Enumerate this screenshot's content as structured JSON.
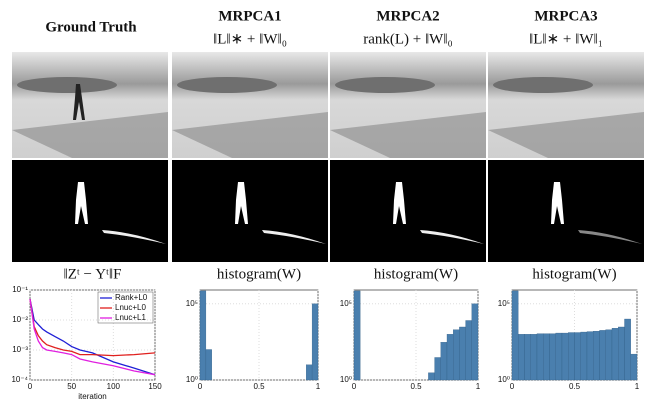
{
  "headers": [
    {
      "title": "Ground Truth"
    },
    {
      "title": "MRPCA1",
      "formula": "‖L‖∗ + ‖W‖₀"
    },
    {
      "title": "MRPCA2",
      "formula": "rank(L) + ‖W‖₀"
    },
    {
      "title": "MRPCA3",
      "formula": "‖L‖∗ + ‖W‖₁"
    }
  ],
  "chart_data": [
    {
      "type": "line",
      "title": "‖Zᵗ − Yᵗ‖F",
      "x_label": "iteration",
      "x": [
        0,
        5,
        10,
        15,
        20,
        30,
        40,
        50,
        60,
        75,
        100,
        125,
        150
      ],
      "series": [
        {
          "name": "Rank+L0",
          "color": "#1f1fd6",
          "values": [
            0.05,
            0.01,
            0.007,
            0.005,
            0.004,
            0.0028,
            0.002,
            0.0013,
            0.001,
            0.0008,
            0.0004,
            0.00025,
            0.00015
          ]
        },
        {
          "name": "Lnuc+L0",
          "color": "#e0201e",
          "values": [
            0.05,
            0.006,
            0.003,
            0.002,
            0.0015,
            0.0012,
            0.001,
            0.0009,
            0.0007,
            0.0007,
            0.00065,
            0.0007,
            0.0008
          ]
        },
        {
          "name": "Lnuc+L1",
          "color": "#e020e0",
          "values": [
            0.05,
            0.005,
            0.002,
            0.0012,
            0.001,
            0.0009,
            0.0008,
            0.0007,
            0.0005,
            0.0004,
            0.0003,
            0.0002,
            0.00015
          ]
        }
      ],
      "xlim": [
        0,
        150
      ],
      "xticks": [
        0,
        50,
        100,
        150
      ],
      "ylim": [
        0.0001,
        0.1
      ],
      "log_y": true,
      "yticks": [
        {
          "value": 0.0001,
          "label": "10⁻⁴"
        },
        {
          "value": 0.001,
          "label": "10⁻³"
        },
        {
          "value": 0.01,
          "label": "10⁻²"
        },
        {
          "value": 0.1,
          "label": "10⁻¹"
        }
      ],
      "grid": true,
      "legend": "top-right"
    },
    {
      "type": "histogram",
      "title": "histogram(W)",
      "color": "#4a7fae",
      "bins": [
        0,
        0.05,
        0.1,
        0.15,
        0.2,
        0.25,
        0.3,
        0.35,
        0.4,
        0.45,
        0.5,
        0.55,
        0.6,
        0.65,
        0.7,
        0.75,
        0.8,
        0.85,
        0.9,
        0.95,
        1
      ],
      "values": [
        700000,
        100,
        1,
        1,
        1,
        1,
        1,
        1,
        1,
        1,
        1,
        1,
        1,
        1,
        1,
        1,
        1,
        1,
        10,
        100000
      ],
      "xlim": [
        0,
        1
      ],
      "xticks": [
        0,
        0.5,
        1
      ],
      "ylim": [
        1,
        800000
      ],
      "log_y": true,
      "yticks": [
        {
          "value": 1,
          "label": "10⁰"
        },
        {
          "value": 100000,
          "label": "10⁵"
        }
      ],
      "grid": true
    },
    {
      "type": "histogram",
      "title": "histogram(W)",
      "color": "#4a7fae",
      "bins": [
        0,
        0.05,
        0.1,
        0.15,
        0.2,
        0.25,
        0.3,
        0.35,
        0.4,
        0.45,
        0.5,
        0.55,
        0.6,
        0.65,
        0.7,
        0.75,
        0.8,
        0.85,
        0.9,
        0.95,
        1
      ],
      "values": [
        700000,
        1,
        1,
        1,
        1,
        1,
        1,
        1,
        1,
        1,
        1,
        1,
        3,
        30,
        300,
        1000,
        2000,
        3000,
        8000,
        100000
      ],
      "xlim": [
        0,
        1
      ],
      "xticks": [
        0,
        0.5,
        1
      ],
      "ylim": [
        1,
        800000
      ],
      "log_y": true,
      "yticks": [
        {
          "value": 1,
          "label": "10⁰"
        },
        {
          "value": 100000,
          "label": "10⁵"
        }
      ],
      "grid": true
    },
    {
      "type": "histogram",
      "title": "histogram(W)",
      "color": "#4a7fae",
      "bins": [
        0,
        0.05,
        0.1,
        0.15,
        0.2,
        0.25,
        0.3,
        0.35,
        0.4,
        0.45,
        0.5,
        0.55,
        0.6,
        0.65,
        0.7,
        0.75,
        0.8,
        0.85,
        0.9,
        0.95,
        1
      ],
      "values": [
        700000,
        1000,
        1000,
        1000,
        1100,
        1100,
        1100,
        1200,
        1200,
        1300,
        1300,
        1400,
        1500,
        1600,
        1800,
        2000,
        2500,
        3000,
        10000,
        50
      ],
      "xlim": [
        0,
        1
      ],
      "xticks": [
        0,
        0.5,
        1
      ],
      "ylim": [
        1,
        800000
      ],
      "log_y": true,
      "yticks": [
        {
          "value": 1,
          "label": "10⁰"
        },
        {
          "value": 100000,
          "label": "10⁵"
        }
      ],
      "grid": true
    }
  ]
}
